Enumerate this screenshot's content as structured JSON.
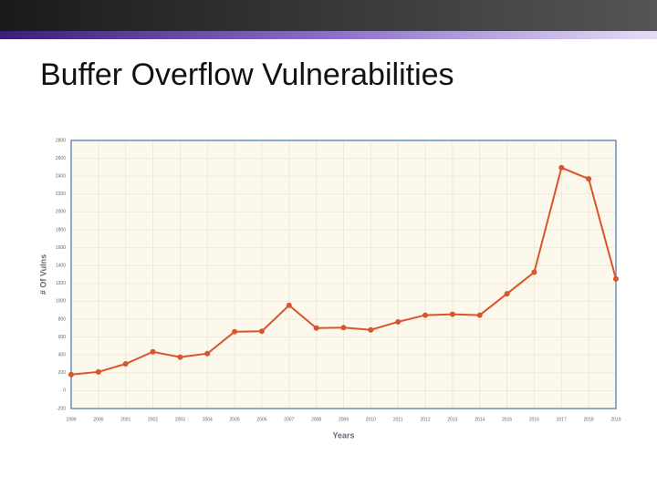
{
  "title": "Buffer Overflow Vulnerabilities",
  "chart_data": {
    "type": "line",
    "x_label": "Years",
    "y_label": "# Of Vulns",
    "categories": [
      "1999",
      "2000",
      "2001",
      "2002",
      "2003",
      "2004",
      "2005",
      "2006",
      "2007",
      "2008",
      "2009",
      "2010",
      "2011",
      "2012",
      "2013",
      "2014",
      "2015",
      "2016",
      "2017",
      "2018",
      "2019"
    ],
    "values": [
      180,
      210,
      300,
      435,
      375,
      415,
      660,
      665,
      955,
      700,
      705,
      680,
      770,
      845,
      855,
      845,
      1085,
      1325,
      2495,
      2370,
      1250
    ],
    "color": "#d9552b",
    "ylim": [
      -200,
      2800
    ],
    "yticks": [
      -200,
      0,
      200,
      400,
      600,
      800,
      1000,
      1200,
      1400,
      1600,
      1800,
      2000,
      2200,
      2400,
      2600,
      2800
    ],
    "grid": true
  }
}
